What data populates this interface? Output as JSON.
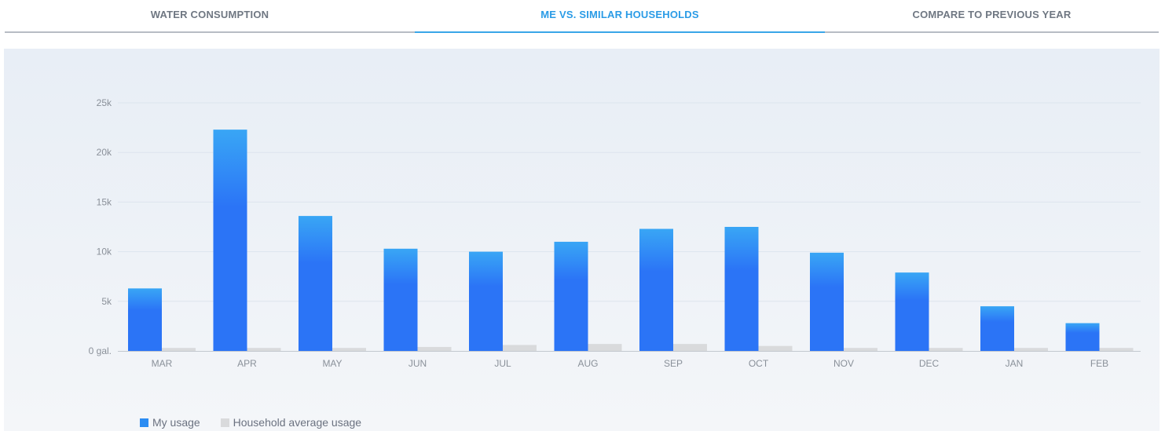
{
  "tabs": [
    {
      "label": "WATER CONSUMPTION",
      "active": false
    },
    {
      "label": "ME VS. SIMILAR HOUSEHOLDS",
      "active": true
    },
    {
      "label": "COMPARE TO PREVIOUS YEAR",
      "active": false
    }
  ],
  "colors": {
    "accent": "#2a9be6",
    "my_usage_top": "#39a6f5",
    "my_usage": "#2b74f6",
    "household_avg": "#d9dadc",
    "grid": "#dde4ee",
    "axis_text": "#8a9099"
  },
  "chart_data": {
    "type": "bar",
    "categories": [
      "MAR",
      "APR",
      "MAY",
      "JUN",
      "JUL",
      "AUG",
      "SEP",
      "OCT",
      "NOV",
      "DEC",
      "JAN",
      "FEB"
    ],
    "series": [
      {
        "name": "My usage",
        "values": [
          6300,
          22300,
          13600,
          10300,
          10000,
          11000,
          12300,
          12500,
          9900,
          7900,
          4500,
          2800
        ]
      },
      {
        "name": "Household average usage",
        "values": [
          300,
          300,
          300,
          400,
          600,
          700,
          700,
          500,
          300,
          300,
          300,
          300
        ]
      }
    ],
    "y_ticks": [
      "0 gal.",
      "5k",
      "10k",
      "15k",
      "20k",
      "25k"
    ],
    "y_tick_values": [
      0,
      5000,
      10000,
      15000,
      20000,
      25000
    ],
    "ylim": [
      0,
      25000
    ],
    "grid": true,
    "legend_position": "bottom-left"
  }
}
